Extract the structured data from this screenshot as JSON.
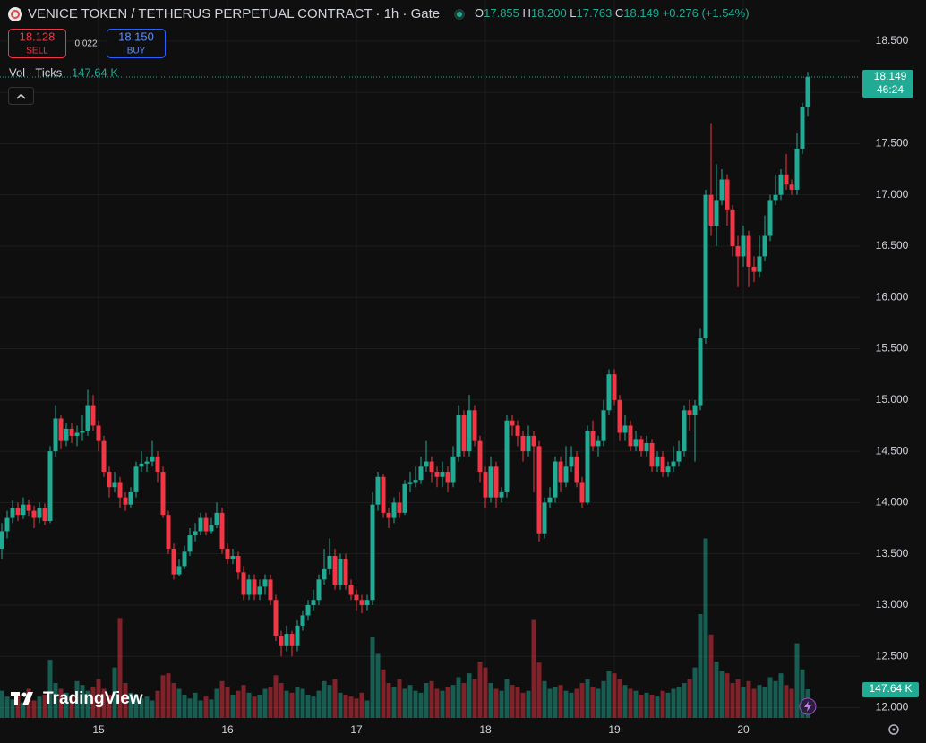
{
  "header": {
    "title": "VENICE TOKEN / TETHERUS PERPETUAL CONTRACT · 1h · Gate",
    "ohlc": [
      {
        "key": "O",
        "value": "17.855"
      },
      {
        "key": "H",
        "value": "18.200"
      },
      {
        "key": "L",
        "value": "17.763"
      },
      {
        "key": "C",
        "value": "18.149"
      }
    ],
    "change": "+0.276 (+1.54%)"
  },
  "trade": {
    "sell_price": "18.128",
    "sell_label": "SELL",
    "spread": "0.022",
    "buy_price": "18.150",
    "buy_label": "BUY"
  },
  "indicator": {
    "name": "Vol · Ticks",
    "value": "147.64 K"
  },
  "chart_data": {
    "type": "candlestick",
    "brand": "TradingView",
    "countdown": "46:24",
    "up_color": "#22ab94",
    "down_color": "#f23645",
    "grid": true,
    "ylim": [
      11.9,
      18.9
    ],
    "yticks": [
      {
        "value": 12,
        "label": "12.000"
      },
      {
        "value": 12.5,
        "label": "12.500"
      },
      {
        "value": 13,
        "label": "13.000"
      },
      {
        "value": 13.5,
        "label": "13.500"
      },
      {
        "value": 14,
        "label": "14.000"
      },
      {
        "value": 14.5,
        "label": "14.500"
      },
      {
        "value": 15,
        "label": "15.000"
      },
      {
        "value": 15.5,
        "label": "15.500"
      },
      {
        "value": 16,
        "label": "16.000"
      },
      {
        "value": 16.5,
        "label": "16.500"
      },
      {
        "value": 17,
        "label": "17.000"
      },
      {
        "value": 17.5,
        "label": "17.500"
      },
      {
        "value": 18,
        "label": "18.000"
      },
      {
        "value": 18.5,
        "label": "18.500"
      }
    ],
    "y2lim": [
      0,
      3700
    ],
    "categories": [
      null,
      null,
      null,
      null,
      null,
      null,
      null,
      null,
      null,
      null,
      null,
      null,
      null,
      null,
      null,
      null,
      null,
      null,
      "15",
      null,
      null,
      null,
      null,
      null,
      null,
      null,
      null,
      null,
      null,
      null,
      null,
      null,
      null,
      null,
      null,
      null,
      null,
      null,
      null,
      null,
      null,
      null,
      "16",
      null,
      null,
      null,
      null,
      null,
      null,
      null,
      null,
      null,
      null,
      null,
      null,
      null,
      null,
      null,
      null,
      null,
      null,
      null,
      null,
      null,
      null,
      null,
      "17",
      null,
      null,
      null,
      null,
      null,
      null,
      null,
      null,
      null,
      null,
      null,
      null,
      null,
      null,
      null,
      null,
      null,
      null,
      null,
      null,
      null,
      null,
      null,
      "18",
      null,
      null,
      null,
      null,
      null,
      null,
      null,
      null,
      null,
      null,
      null,
      null,
      null,
      null,
      null,
      null,
      null,
      null,
      null,
      null,
      null,
      null,
      null,
      "19",
      null,
      null,
      null,
      null,
      null,
      null,
      null,
      null,
      null,
      null,
      null,
      null,
      null,
      null,
      null,
      null,
      null,
      null,
      null,
      null,
      null,
      null,
      null,
      "20",
      null,
      null,
      null,
      null,
      null,
      null,
      null,
      null,
      null,
      null,
      null,
      null
    ],
    "open": [
      13.55,
      13.72,
      13.85,
      13.95,
      13.88,
      13.98,
      13.92,
      13.85,
      13.95,
      13.82,
      14.5,
      14.82,
      14.6,
      14.72,
      14.65,
      14.68,
      14.7,
      14.95,
      14.75,
      14.6,
      14.3,
      14.15,
      14.2,
      14.05,
      13.98,
      14.1,
      14.35,
      14.38,
      14.4,
      14.45,
      14.3,
      13.88,
      13.55,
      13.3,
      13.38,
      13.52,
      13.68,
      13.72,
      13.85,
      13.72,
      13.78,
      13.9,
      13.55,
      13.45,
      13.48,
      13.32,
      13.1,
      13.25,
      13.1,
      13.18,
      13.25,
      13.05,
      12.7,
      12.6,
      12.72,
      12.6,
      12.8,
      12.9,
      13.0,
      13.05,
      13.25,
      13.35,
      13.48,
      13.2,
      13.45,
      13.2,
      13.1,
      13.05,
      13.0,
      13.05,
      13.98,
      14.25,
      13.9,
      13.85,
      14.0,
      13.9,
      14.18,
      14.2,
      14.22,
      14.35,
      14.4,
      14.3,
      14.25,
      14.3,
      14.2,
      14.45,
      14.85,
      14.5,
      14.9,
      14.6,
      14.3,
      14.05,
      14.35,
      14.05,
      14.1,
      14.8,
      14.75,
      14.65,
      14.5,
      14.65,
      14.55,
      13.7,
      14.0,
      14.05,
      14.4,
      14.2,
      14.35,
      14.45,
      14.2,
      14.0,
      14.7,
      14.55,
      14.6,
      14.9,
      15.25,
      15.0,
      14.68,
      14.75,
      14.55,
      14.62,
      14.5,
      14.58,
      14.35,
      14.45,
      14.3,
      14.35,
      14.4,
      14.5,
      14.9,
      14.85,
      14.95,
      15.6,
      17.0,
      16.7,
      16.95,
      17.15,
      16.85,
      16.5,
      16.4,
      16.6,
      16.3,
      16.25,
      16.4,
      16.6,
      16.95,
      17.0,
      17.2,
      17.1,
      17.05,
      17.45,
      17.855
    ],
    "high": [
      13.8,
      13.92,
      14.02,
      14.0,
      14.05,
      14.03,
      13.97,
      14.0,
      13.99,
      14.55,
      14.95,
      14.85,
      14.78,
      14.78,
      14.75,
      14.85,
      15.1,
      15.05,
      14.8,
      14.65,
      14.35,
      14.3,
      14.25,
      14.1,
      14.15,
      14.4,
      14.5,
      14.45,
      14.6,
      14.5,
      14.35,
      13.92,
      13.6,
      13.45,
      13.58,
      13.75,
      13.8,
      13.9,
      13.9,
      13.85,
      14.0,
      13.95,
      13.6,
      13.55,
      13.52,
      13.38,
      13.3,
      13.3,
      13.25,
      13.3,
      13.3,
      13.1,
      12.75,
      12.8,
      12.75,
      12.85,
      12.95,
      13.05,
      13.15,
      13.3,
      13.55,
      13.65,
      13.55,
      13.5,
      13.5,
      13.25,
      13.15,
      13.1,
      13.1,
      14.1,
      14.3,
      14.28,
      13.95,
      14.05,
      14.1,
      14.22,
      14.3,
      14.35,
      14.45,
      14.6,
      14.45,
      14.35,
      14.4,
      14.35,
      14.55,
      14.95,
      14.9,
      15.05,
      14.95,
      14.65,
      14.35,
      14.45,
      14.4,
      14.15,
      14.85,
      14.85,
      14.8,
      14.7,
      14.75,
      14.7,
      14.6,
      14.05,
      14.15,
      14.45,
      14.45,
      14.55,
      14.55,
      14.5,
      14.25,
      14.75,
      14.8,
      14.65,
      15.0,
      15.3,
      15.3,
      15.05,
      14.85,
      14.8,
      14.7,
      14.65,
      14.65,
      14.62,
      14.5,
      14.5,
      14.4,
      14.55,
      14.6,
      14.95,
      15.0,
      15.0,
      15.7,
      17.05,
      17.7,
      17.3,
      17.25,
      17.2,
      16.9,
      16.6,
      16.7,
      16.65,
      16.4,
      16.6,
      16.8,
      17.0,
      17.2,
      17.25,
      17.4,
      17.15,
      17.6,
      17.9,
      18.2
    ],
    "low": [
      13.45,
      13.65,
      13.8,
      13.82,
      13.84,
      13.87,
      13.75,
      13.8,
      13.78,
      13.8,
      14.45,
      14.52,
      14.55,
      14.58,
      14.55,
      14.6,
      14.65,
      14.7,
      14.5,
      14.25,
      14.05,
      14.1,
      13.95,
      13.92,
      13.95,
      14.05,
      14.3,
      14.3,
      14.35,
      14.2,
      13.85,
      13.5,
      13.25,
      13.28,
      13.35,
      13.48,
      13.62,
      13.68,
      13.68,
      13.7,
      13.75,
      13.5,
      13.4,
      13.4,
      13.25,
      13.05,
      13.05,
      13.05,
      13.05,
      13.1,
      13.0,
      12.65,
      12.5,
      12.55,
      12.5,
      12.55,
      12.75,
      12.85,
      12.95,
      13.0,
      13.2,
      13.3,
      13.15,
      13.15,
      13.15,
      13.05,
      12.95,
      12.92,
      12.95,
      13.0,
      13.92,
      13.85,
      13.75,
      13.8,
      13.85,
      13.88,
      14.1,
      14.15,
      14.18,
      14.3,
      14.2,
      14.15,
      14.15,
      14.1,
      14.15,
      14.4,
      14.45,
      14.45,
      14.55,
      14.2,
      13.95,
      14.0,
      13.95,
      14.0,
      14.05,
      14.65,
      14.55,
      14.4,
      14.45,
      14.1,
      13.62,
      13.65,
      13.95,
      14.0,
      14.1,
      14.15,
      14.3,
      14.15,
      13.95,
      13.98,
      14.5,
      14.45,
      14.55,
      14.85,
      14.95,
      14.6,
      14.6,
      14.5,
      14.5,
      14.45,
      14.45,
      14.3,
      14.3,
      14.25,
      14.25,
      14.3,
      14.35,
      14.45,
      14.7,
      14.4,
      14.9,
      15.55,
      16.6,
      16.5,
      16.9,
      16.7,
      16.4,
      16.1,
      16.3,
      16.1,
      16.15,
      16.2,
      16.35,
      16.55,
      16.9,
      16.95,
      17.05,
      17.0,
      17.0,
      17.4,
      17.763
    ],
    "close": [
      13.72,
      13.85,
      13.95,
      13.88,
      13.98,
      13.92,
      13.85,
      13.95,
      13.82,
      14.5,
      14.82,
      14.6,
      14.72,
      14.65,
      14.68,
      14.7,
      14.95,
      14.75,
      14.6,
      14.3,
      14.15,
      14.2,
      14.05,
      13.98,
      14.1,
      14.35,
      14.38,
      14.4,
      14.45,
      14.3,
      13.88,
      13.55,
      13.3,
      13.38,
      13.52,
      13.68,
      13.72,
      13.85,
      13.72,
      13.78,
      13.9,
      13.55,
      13.45,
      13.48,
      13.32,
      13.1,
      13.25,
      13.1,
      13.18,
      13.25,
      13.05,
      12.7,
      12.6,
      12.72,
      12.6,
      12.8,
      12.9,
      13.0,
      13.05,
      13.25,
      13.35,
      13.48,
      13.2,
      13.45,
      13.2,
      13.1,
      13.05,
      13.0,
      13.05,
      13.98,
      14.25,
      13.9,
      13.85,
      14.0,
      13.9,
      14.18,
      14.2,
      14.22,
      14.35,
      14.4,
      14.3,
      14.25,
      14.3,
      14.2,
      14.45,
      14.85,
      14.5,
      14.9,
      14.6,
      14.3,
      14.05,
      14.35,
      14.05,
      14.1,
      14.8,
      14.75,
      14.65,
      14.5,
      14.65,
      14.55,
      13.7,
      14.0,
      14.05,
      14.4,
      14.2,
      14.35,
      14.45,
      14.2,
      14.0,
      14.7,
      14.55,
      14.6,
      14.9,
      15.25,
      15.0,
      14.68,
      14.75,
      14.55,
      14.62,
      14.5,
      14.58,
      14.35,
      14.45,
      14.3,
      14.35,
      14.4,
      14.5,
      14.9,
      14.85,
      14.95,
      15.6,
      17.0,
      16.7,
      16.95,
      17.15,
      16.85,
      16.5,
      16.4,
      16.6,
      16.3,
      16.25,
      16.4,
      16.6,
      16.95,
      17.0,
      17.2,
      17.1,
      17.05,
      17.45,
      17.855,
      18.149
    ],
    "volume": [
      140,
      110,
      95,
      120,
      80,
      150,
      90,
      110,
      120,
      300,
      180,
      150,
      130,
      110,
      190,
      170,
      140,
      160,
      200,
      150,
      120,
      260,
      515,
      180,
      130,
      120,
      100,
      110,
      90,
      140,
      220,
      230,
      180,
      150,
      120,
      100,
      130,
      90,
      110,
      95,
      150,
      190,
      160,
      120,
      140,
      170,
      130,
      110,
      120,
      150,
      160,
      220,
      180,
      140,
      130,
      160,
      150,
      120,
      110,
      140,
      190,
      170,
      200,
      130,
      120,
      110,
      100,
      130,
      90,
      415,
      330,
      250,
      180,
      160,
      200,
      150,
      170,
      140,
      130,
      180,
      190,
      150,
      140,
      160,
      170,
      210,
      180,
      230,
      200,
      290,
      260,
      180,
      150,
      140,
      200,
      170,
      160,
      130,
      140,
      505,
      285,
      190,
      150,
      160,
      170,
      140,
      130,
      150,
      180,
      200,
      160,
      150,
      190,
      240,
      230,
      200,
      170,
      150,
      140,
      120,
      130,
      120,
      110,
      140,
      130,
      150,
      160,
      180,
      200,
      260,
      535,
      925,
      430,
      290,
      240,
      230,
      180,
      200,
      160,
      190,
      150,
      170,
      160,
      210,
      190,
      230,
      170,
      150,
      385,
      250,
      147.64
    ]
  }
}
